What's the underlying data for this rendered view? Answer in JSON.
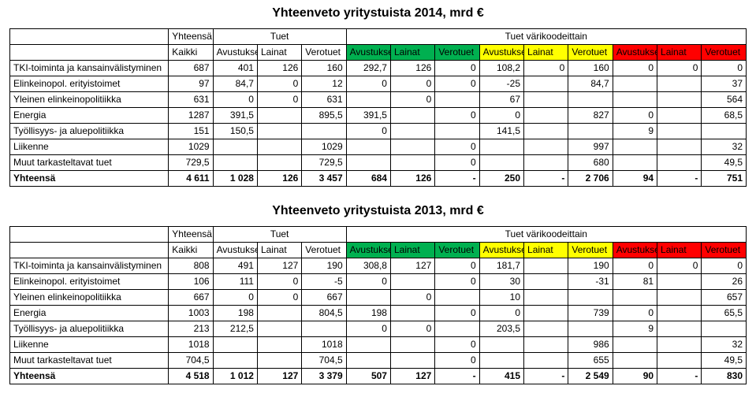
{
  "tables": [
    {
      "title": "Yhteenveto yritystuista 2014, mrd €",
      "header": {
        "groups": [
          "Yhteensä",
          "Tuet",
          "Tuet värikoodeittain"
        ],
        "cols_label": "Kaikki",
        "sub": [
          "Avustukset",
          "Lainat",
          "Verotuet"
        ],
        "color_blocks": [
          {
            "bg": "bg-green"
          },
          {
            "bg": "bg-yellow"
          },
          {
            "bg": "bg-red"
          }
        ]
      },
      "rows": [
        {
          "label": "TKI-toiminta ja kansainvälistyminen",
          "cells": [
            "687",
            "401",
            "126",
            "160",
            "292,7",
            "126",
            "0",
            "108,2",
            "0",
            "160",
            "0",
            "0",
            "0"
          ]
        },
        {
          "label": "Elinkeinopol. erityistoimet",
          "cells": [
            "97",
            "84,7",
            "0",
            "12",
            "0",
            "0",
            "0",
            "-25",
            "",
            "84,7",
            "",
            "",
            "37"
          ]
        },
        {
          "label": "Yleinen elinkeinopolitiikka",
          "cells": [
            "631",
            "0",
            "0",
            "631",
            "",
            "0",
            "",
            "67",
            "",
            "",
            "",
            "",
            "564"
          ]
        },
        {
          "label": "Energia",
          "cells": [
            "1287",
            "391,5",
            "",
            "895,5",
            "391,5",
            "",
            "0",
            "0",
            "",
            "827",
            "0",
            "",
            "68,5"
          ]
        },
        {
          "label": "Työllisyys- ja aluepolitiikka",
          "cells": [
            "151",
            "150,5",
            "",
            "",
            "0",
            "",
            "",
            "141,5",
            "",
            "",
            "9",
            "",
            ""
          ]
        },
        {
          "label": "Liikenne",
          "cells": [
            "1029",
            "",
            "",
            "1029",
            "",
            "",
            "0",
            "",
            "",
            "997",
            "",
            "",
            "32"
          ]
        },
        {
          "label": "Muut tarkasteltavat tuet",
          "cells": [
            "729,5",
            "",
            "",
            "729,5",
            "",
            "",
            "0",
            "",
            "",
            "680",
            "",
            "",
            "49,5"
          ]
        }
      ],
      "total": {
        "label": "Yhteensä",
        "cells": [
          "4 611",
          "1 028",
          "126",
          "3 457",
          "684",
          "126",
          "-",
          "250",
          "-",
          "2 706",
          "94",
          "-",
          "751"
        ]
      }
    },
    {
      "title": "Yhteenveto yritystuista 2013, mrd €",
      "header": {
        "groups": [
          "Yhteensä",
          "Tuet",
          "Tuet värikoodeittain"
        ],
        "cols_label": "Kaikki",
        "sub": [
          "Avustukset",
          "Lainat",
          "Verotuet"
        ],
        "color_blocks": [
          {
            "bg": "bg-green"
          },
          {
            "bg": "bg-yellow"
          },
          {
            "bg": "bg-red"
          }
        ]
      },
      "rows": [
        {
          "label": "TKI-toiminta ja kansainvälistyminen",
          "cells": [
            "808",
            "491",
            "127",
            "190",
            "308,8",
            "127",
            "0",
            "181,7",
            "",
            "190",
            "0",
            "0",
            "0"
          ]
        },
        {
          "label": "Elinkeinopol. erityistoimet",
          "cells": [
            "106",
            "111",
            "0",
            "-5",
            "0",
            "",
            "0",
            "30",
            "",
            "-31",
            "81",
            "",
            "26"
          ]
        },
        {
          "label": "Yleinen elinkeinopolitiikka",
          "cells": [
            "667",
            "0",
            "0",
            "667",
            "",
            "0",
            "",
            "10",
            "",
            "",
            "",
            "",
            "657"
          ]
        },
        {
          "label": "Energia",
          "cells": [
            "1003",
            "198",
            "",
            "804,5",
            "198",
            "",
            "0",
            "0",
            "",
            "739",
            "0",
            "",
            "65,5"
          ]
        },
        {
          "label": "Työllisyys- ja aluepolitiikka",
          "cells": [
            "213",
            "212,5",
            "",
            "",
            "0",
            "0",
            "",
            "203,5",
            "",
            "",
            "9",
            "",
            ""
          ]
        },
        {
          "label": "Liikenne",
          "cells": [
            "1018",
            "",
            "",
            "1018",
            "",
            "",
            "0",
            "",
            "",
            "986",
            "",
            "",
            "32"
          ]
        },
        {
          "label": "Muut tarkasteltavat tuet",
          "cells": [
            "704,5",
            "",
            "",
            "704,5",
            "",
            "",
            "0",
            "",
            "",
            "655",
            "",
            "",
            "49,5"
          ]
        }
      ],
      "total": {
        "label": "Yhteensä",
        "cells": [
          "4 518",
          "1 012",
          "127",
          "3 379",
          "507",
          "127",
          "-",
          "415",
          "-",
          "2 549",
          "90",
          "-",
          "830"
        ]
      }
    }
  ],
  "colors": {
    "green": "#00b050",
    "yellow": "#ffff00",
    "red": "#ff0000",
    "border": "#000000",
    "background": "#ffffff"
  }
}
